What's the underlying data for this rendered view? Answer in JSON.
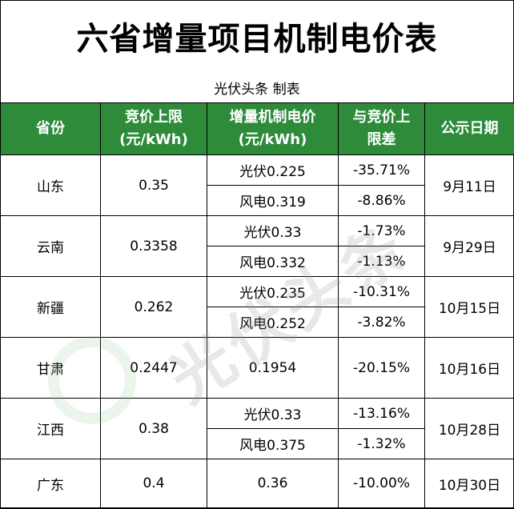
{
  "title": "六省增量项目机制电价表",
  "subtitle": "光伏头条 制表",
  "watermark": "光伏头条",
  "headers": [
    "省份",
    "竞价上限\n(元/kWh)",
    "增量机制电价\n(元/kWh)",
    "与竞价上\n限差",
    "公示日期"
  ],
  "headers_lines": [
    [
      "省份"
    ],
    [
      "竞价上限",
      "(元/kWh)"
    ],
    [
      "增量机制电价",
      "(元/kWh)"
    ],
    [
      "与竞价上",
      "限差"
    ],
    [
      "公示日期"
    ]
  ],
  "rows": [
    {
      "province": "山东",
      "cap": "0.35",
      "items": [
        {
          "price": "光伏0.225",
          "diff": "-35.71%"
        },
        {
          "price": "风电0.319",
          "diff": "-8.86%"
        }
      ],
      "date": "9月11日"
    },
    {
      "province": "云南",
      "cap": "0.3358",
      "items": [
        {
          "price": "光伏0.33",
          "diff": "-1.73%"
        },
        {
          "price": "风电0.332",
          "diff": "-1.13%"
        }
      ],
      "date": "9月29日"
    },
    {
      "province": "新疆",
      "cap": "0.262",
      "items": [
        {
          "price": "光伏0.235",
          "diff": "-10.31%"
        },
        {
          "price": "风电0.252",
          "diff": "-3.82%"
        }
      ],
      "date": "10月15日"
    },
    {
      "province": "甘肃",
      "cap": "0.2447",
      "items": [
        {
          "price": "0.1954",
          "diff": "-20.15%"
        }
      ],
      "date": "10月16日"
    },
    {
      "province": "江西",
      "cap": "0.38",
      "items": [
        {
          "price": "光伏0.33",
          "diff": "-13.16%"
        },
        {
          "price": "风电0.375",
          "diff": "-1.32%"
        }
      ],
      "date": "10月28日"
    },
    {
      "province": "广东",
      "cap": "0.4",
      "items": [
        {
          "price": "0.36",
          "diff": "-10.00%"
        }
      ],
      "date": "10月30日"
    }
  ],
  "colors": {
    "header_bg": "#2e8b3a",
    "header_text": "#ffffff"
  }
}
